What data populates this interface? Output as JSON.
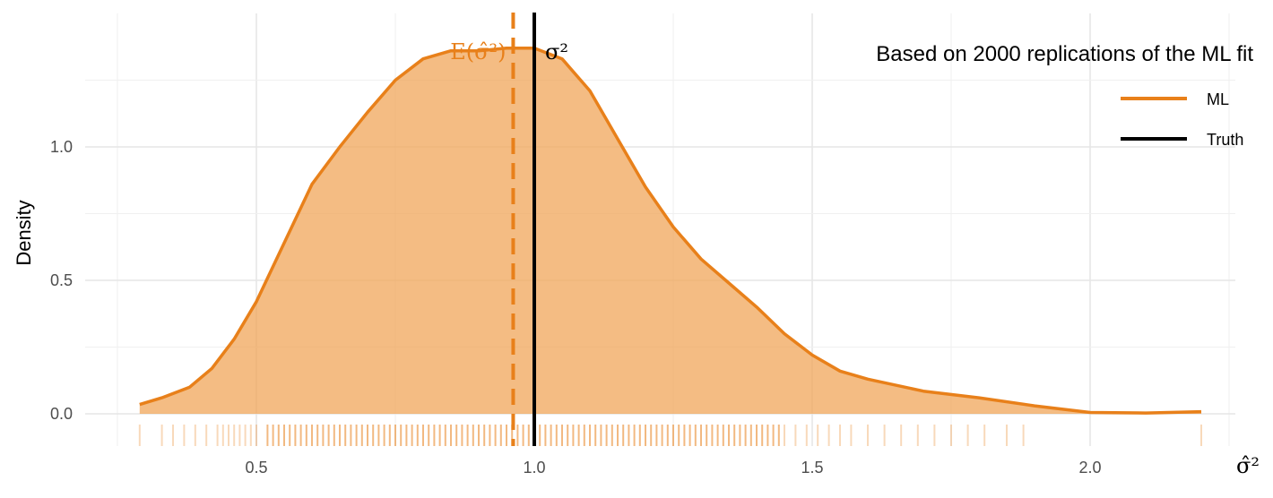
{
  "chart_data": {
    "type": "area",
    "subtitle": "Based on 2000 replications of the ML fit",
    "xlabel": "σ̂²",
    "ylabel": "Density",
    "xlim": [
      0.25,
      2.28
    ],
    "ylim": [
      -0.12,
      1.5
    ],
    "x_ticks": [
      0.5,
      1.0,
      1.5,
      2.0
    ],
    "x_tick_labels": [
      "0.5",
      "1.0",
      "1.5",
      "2.0"
    ],
    "y_ticks": [
      0.0,
      0.5,
      1.0
    ],
    "y_tick_labels": [
      "0.0",
      "0.5",
      "1.0"
    ],
    "grid": true,
    "legend_position": "top-right",
    "series": [
      {
        "name": "ML",
        "color": "#E8801A",
        "fill": "#F0A659",
        "x": [
          0.29,
          0.33,
          0.38,
          0.42,
          0.46,
          0.5,
          0.55,
          0.6,
          0.65,
          0.7,
          0.75,
          0.8,
          0.85,
          0.9,
          0.95,
          1.0,
          1.05,
          1.1,
          1.15,
          1.2,
          1.25,
          1.3,
          1.35,
          1.4,
          1.45,
          1.5,
          1.55,
          1.6,
          1.7,
          1.8,
          1.9,
          2.0,
          2.1,
          2.2
        ],
        "y": [
          0.035,
          0.06,
          0.1,
          0.17,
          0.28,
          0.42,
          0.64,
          0.86,
          1.0,
          1.13,
          1.25,
          1.33,
          1.36,
          1.36,
          1.37,
          1.37,
          1.33,
          1.21,
          1.03,
          0.85,
          0.7,
          0.58,
          0.49,
          0.4,
          0.3,
          0.22,
          0.16,
          0.13,
          0.085,
          0.06,
          0.03,
          0.005,
          0.003,
          0.008
        ]
      },
      {
        "name": "Truth",
        "color": "#000000",
        "vline": 1.0
      }
    ],
    "expectation_line": 0.962,
    "rug": [
      0.29,
      0.33,
      0.35,
      0.37,
      0.39,
      0.41,
      0.43,
      0.44,
      0.45,
      0.46,
      0.47,
      0.48,
      0.49,
      0.5,
      0.52,
      0.53,
      0.54,
      0.55,
      0.56,
      0.57,
      0.58,
      0.59,
      0.6,
      0.61,
      0.62,
      0.63,
      0.64,
      0.65,
      0.66,
      0.67,
      0.68,
      0.69,
      0.7,
      0.71,
      0.72,
      0.73,
      0.74,
      0.75,
      0.76,
      0.77,
      0.78,
      0.79,
      0.8,
      0.81,
      0.82,
      0.83,
      0.84,
      0.85,
      0.86,
      0.87,
      0.88,
      0.89,
      0.9,
      0.91,
      0.92,
      0.93,
      0.94,
      0.95,
      0.96,
      0.97,
      0.98,
      0.99,
      1.0,
      1.01,
      1.02,
      1.03,
      1.04,
      1.05,
      1.06,
      1.07,
      1.08,
      1.09,
      1.1,
      1.11,
      1.12,
      1.13,
      1.14,
      1.15,
      1.16,
      1.17,
      1.18,
      1.19,
      1.2,
      1.21,
      1.22,
      1.23,
      1.24,
      1.25,
      1.26,
      1.27,
      1.28,
      1.29,
      1.3,
      1.31,
      1.32,
      1.33,
      1.34,
      1.35,
      1.36,
      1.37,
      1.38,
      1.39,
      1.4,
      1.41,
      1.42,
      1.43,
      1.44,
      1.45,
      1.47,
      1.49,
      1.51,
      1.53,
      1.55,
      1.57,
      1.6,
      1.63,
      1.66,
      1.69,
      1.72,
      1.75,
      1.78,
      1.81,
      1.85,
      1.88,
      2.2
    ],
    "annotations": [
      {
        "text": "E(σ̂²)",
        "x": 0.962,
        "color": "#E8801A"
      },
      {
        "text": "σ²",
        "x": 1.0,
        "color": "#000000"
      }
    ]
  },
  "icons": []
}
